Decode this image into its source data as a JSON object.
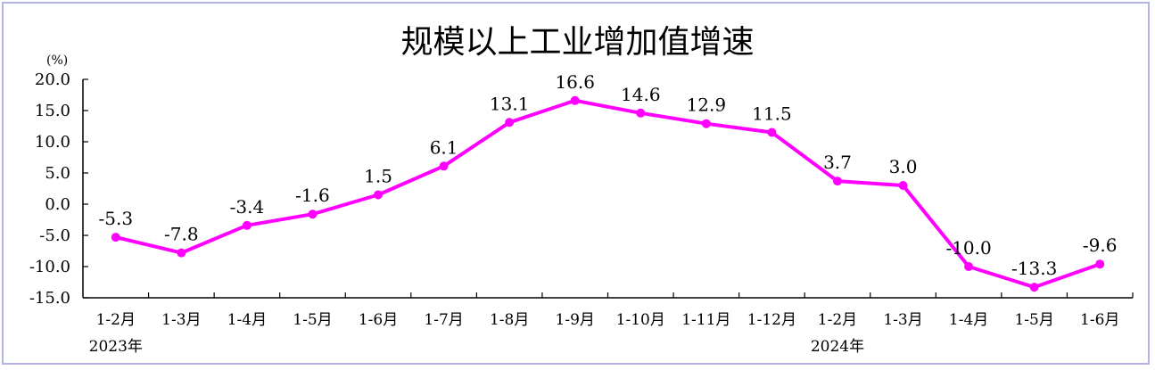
{
  "chart_data": {
    "type": "line",
    "title": "规模以上工业增加值增速",
    "unit": "(%)",
    "ylim": [
      -15,
      20
    ],
    "yticks": [
      "20.0",
      "15.0",
      "10.0",
      "5.0",
      "0.0",
      "-5.0",
      "-10.0",
      "-15.0"
    ],
    "categories": [
      "1-2月",
      "1-3月",
      "1-4月",
      "1-5月",
      "1-6月",
      "1-7月",
      "1-8月",
      "1-9月",
      "1-10月",
      "1-11月",
      "1-12月",
      "1-2月",
      "1-3月",
      "1-4月",
      "1-5月",
      "1-6月"
    ],
    "year_labels": [
      "2023年",
      "2024年"
    ],
    "series": [
      {
        "values": [
          -5.3,
          -7.8,
          -3.4,
          -1.6,
          1.5,
          6.1,
          13.1,
          16.6,
          14.6,
          12.9,
          11.5,
          3.7,
          3.0,
          -10.0,
          -13.3,
          -9.6
        ],
        "labels": [
          "-5.3",
          "-7.8",
          "-3.4",
          "-1.6",
          "1.5",
          "6.1",
          "13.1",
          "16.6",
          "14.6",
          "12.9",
          "11.5",
          "3.7",
          "3.0",
          "-10.0",
          "-13.3",
          "-9.6"
        ],
        "color": "#ff00ff"
      }
    ],
    "grid": false,
    "legend": "none"
  }
}
